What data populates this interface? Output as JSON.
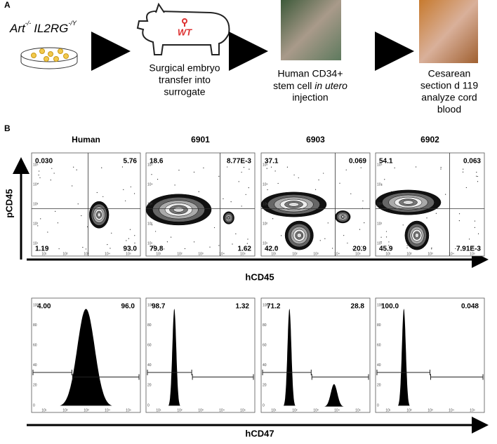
{
  "panel_a": {
    "label": "A",
    "genotype": {
      "gene1": "Art",
      "sup1": "-/-",
      "gene2": "IL2RG",
      "sup2": "-/Y"
    },
    "steps": [
      {
        "badge": "WT",
        "lines": [
          "Surgical embryo",
          "transfer into",
          "surrogate"
        ]
      },
      {
        "lines": [
          "Human CD34+",
          {
            "text": "stem cell ",
            "italic": "in utero"
          },
          "injection"
        ]
      },
      {
        "lines": [
          "Cesarean",
          "section d 119",
          "analyze cord",
          "blood"
        ]
      }
    ]
  },
  "panel_b": {
    "label": "B",
    "y_label": "pCD45",
    "x_label_top": "hCD45",
    "x_label_bottom": "hCD47",
    "log_ticks": [
      "10¹",
      "10²",
      "10³",
      "10⁴",
      "10⁵"
    ],
    "count_ticks": [
      "100",
      "80",
      "60",
      "40",
      "20",
      "0"
    ],
    "samples": [
      {
        "name": "Human",
        "quadrants": [
          "0.030",
          "5.76",
          "1.19",
          "93.0"
        ],
        "gates": [
          "4.00",
          "96.0"
        ]
      },
      {
        "name": "6901",
        "quadrants": [
          "18.6",
          "8.77E-3",
          "79.8",
          "1.62"
        ],
        "gates": [
          "98.7",
          "1.32"
        ]
      },
      {
        "name": "6903",
        "quadrants": [
          "37.1",
          "0.069",
          "42.0",
          "20.9"
        ],
        "gates": [
          "71.2",
          "28.8"
        ]
      },
      {
        "name": "6902",
        "quadrants": [
          "54.1",
          "0.063",
          "45.9",
          "7.91E-3"
        ],
        "gates": [
          "100.0",
          "0.048"
        ]
      }
    ]
  }
}
